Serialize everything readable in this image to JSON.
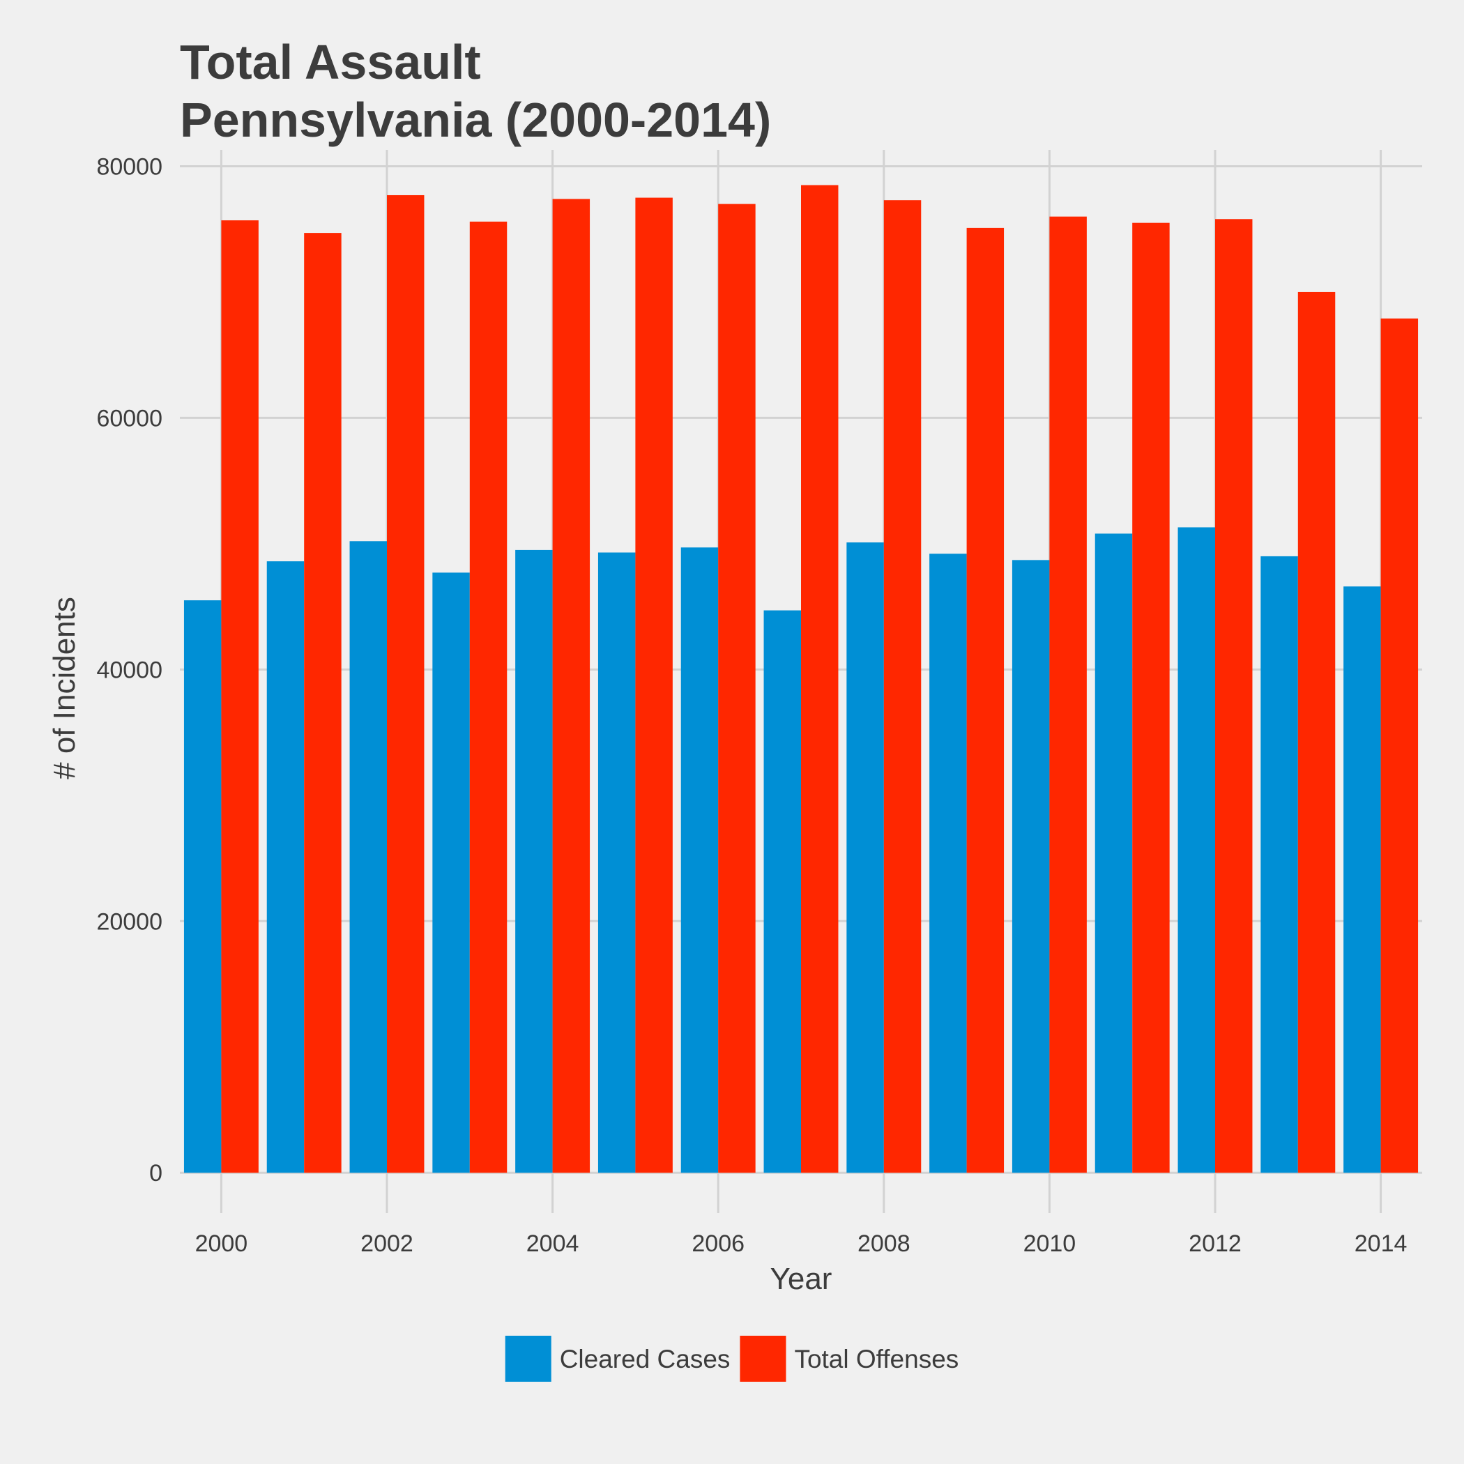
{
  "chart_data": {
    "type": "bar",
    "title": "Total Assault",
    "subtitle": "Pennsylvania (2000-2014)",
    "xlabel": "Year",
    "ylabel": "# of Incidents",
    "categories": [
      "2000",
      "2001",
      "2002",
      "2003",
      "2004",
      "2005",
      "2006",
      "2007",
      "2008",
      "2009",
      "2010",
      "2011",
      "2012",
      "2013",
      "2014"
    ],
    "x_tick_labels": [
      "2000",
      "2002",
      "2004",
      "2006",
      "2008",
      "2010",
      "2012",
      "2014"
    ],
    "y_tick_labels": [
      "0",
      "20000",
      "40000",
      "60000",
      "80000"
    ],
    "ylim": [
      -3200,
      81300
    ],
    "grid": true,
    "legend_position": "bottom",
    "series": [
      {
        "name": "Cleared Cases",
        "color": "#008fd5",
        "values": [
          45500,
          48600,
          50200,
          47700,
          49500,
          49300,
          49700,
          44700,
          50100,
          49200,
          48700,
          50800,
          51300,
          49000,
          46600
        ]
      },
      {
        "name": "Total Offenses",
        "color": "#ff2700",
        "values": [
          75700,
          74700,
          77700,
          75600,
          77400,
          77500,
          77000,
          78500,
          77300,
          75100,
          76000,
          75500,
          75800,
          70000,
          67900
        ]
      }
    ]
  }
}
